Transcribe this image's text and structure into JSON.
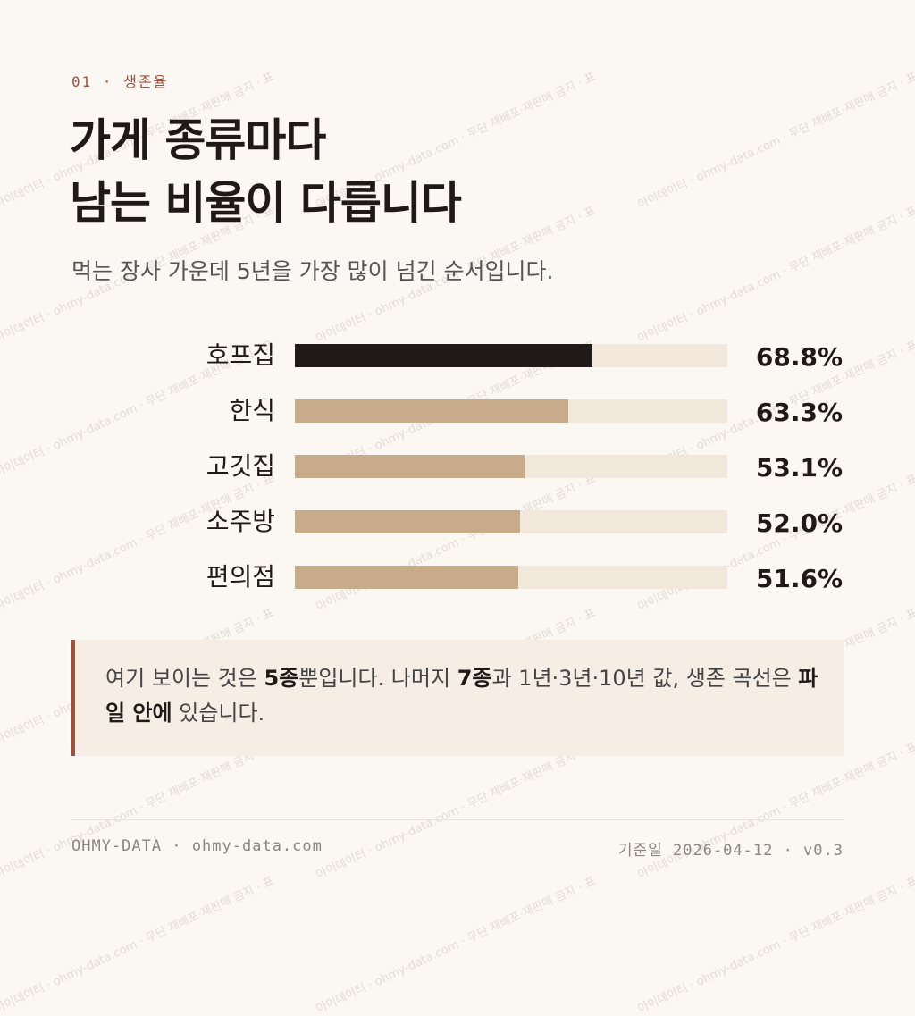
{
  "chart_data": {
    "type": "bar",
    "orientation": "horizontal",
    "eyebrow": "01 · 생존율",
    "title": [
      "가게 종류마다",
      "남는 비율이 다릅니다"
    ],
    "subtitle": "먹는 장사 가운데 5년을 가장 많이 넘긴 순서입니다.",
    "categories": [
      "호프집",
      "한식",
      "고깃집",
      "소주방",
      "편의점"
    ],
    "values": [
      68.8,
      63.3,
      53.1,
      52.0,
      51.6
    ],
    "value_labels": [
      "68.8%",
      "63.3%",
      "53.1%",
      "52.0%",
      "51.6%"
    ],
    "colors": [
      "#1f1a17",
      "#c8ab8a",
      "#c8ab8a",
      "#c8ab8a",
      "#c8ab8a"
    ],
    "track_color": "#f1e7da",
    "xlim": [
      0,
      100
    ],
    "note": [
      {
        "text": "여기 보이는 것은 ",
        "bold": false
      },
      {
        "text": "5종",
        "bold": true
      },
      {
        "text": "뿐입니다. 나머지 ",
        "bold": false
      },
      {
        "text": "7종",
        "bold": true
      },
      {
        "text": "과 1년·3년·10년 값, 생존 곡선은 ",
        "bold": false
      },
      {
        "text": "파일 안에",
        "bold": true
      },
      {
        "text": " 있습니다.",
        "bold": false
      }
    ],
    "footer_left": "OHMY-DATA · ohmy-data.com",
    "footer_right": "기준일 2026-04-12 · v0.3",
    "watermark": "아이데이터 · ohmy-data.com · 무단 재배포·재판매 금지 · 표"
  }
}
